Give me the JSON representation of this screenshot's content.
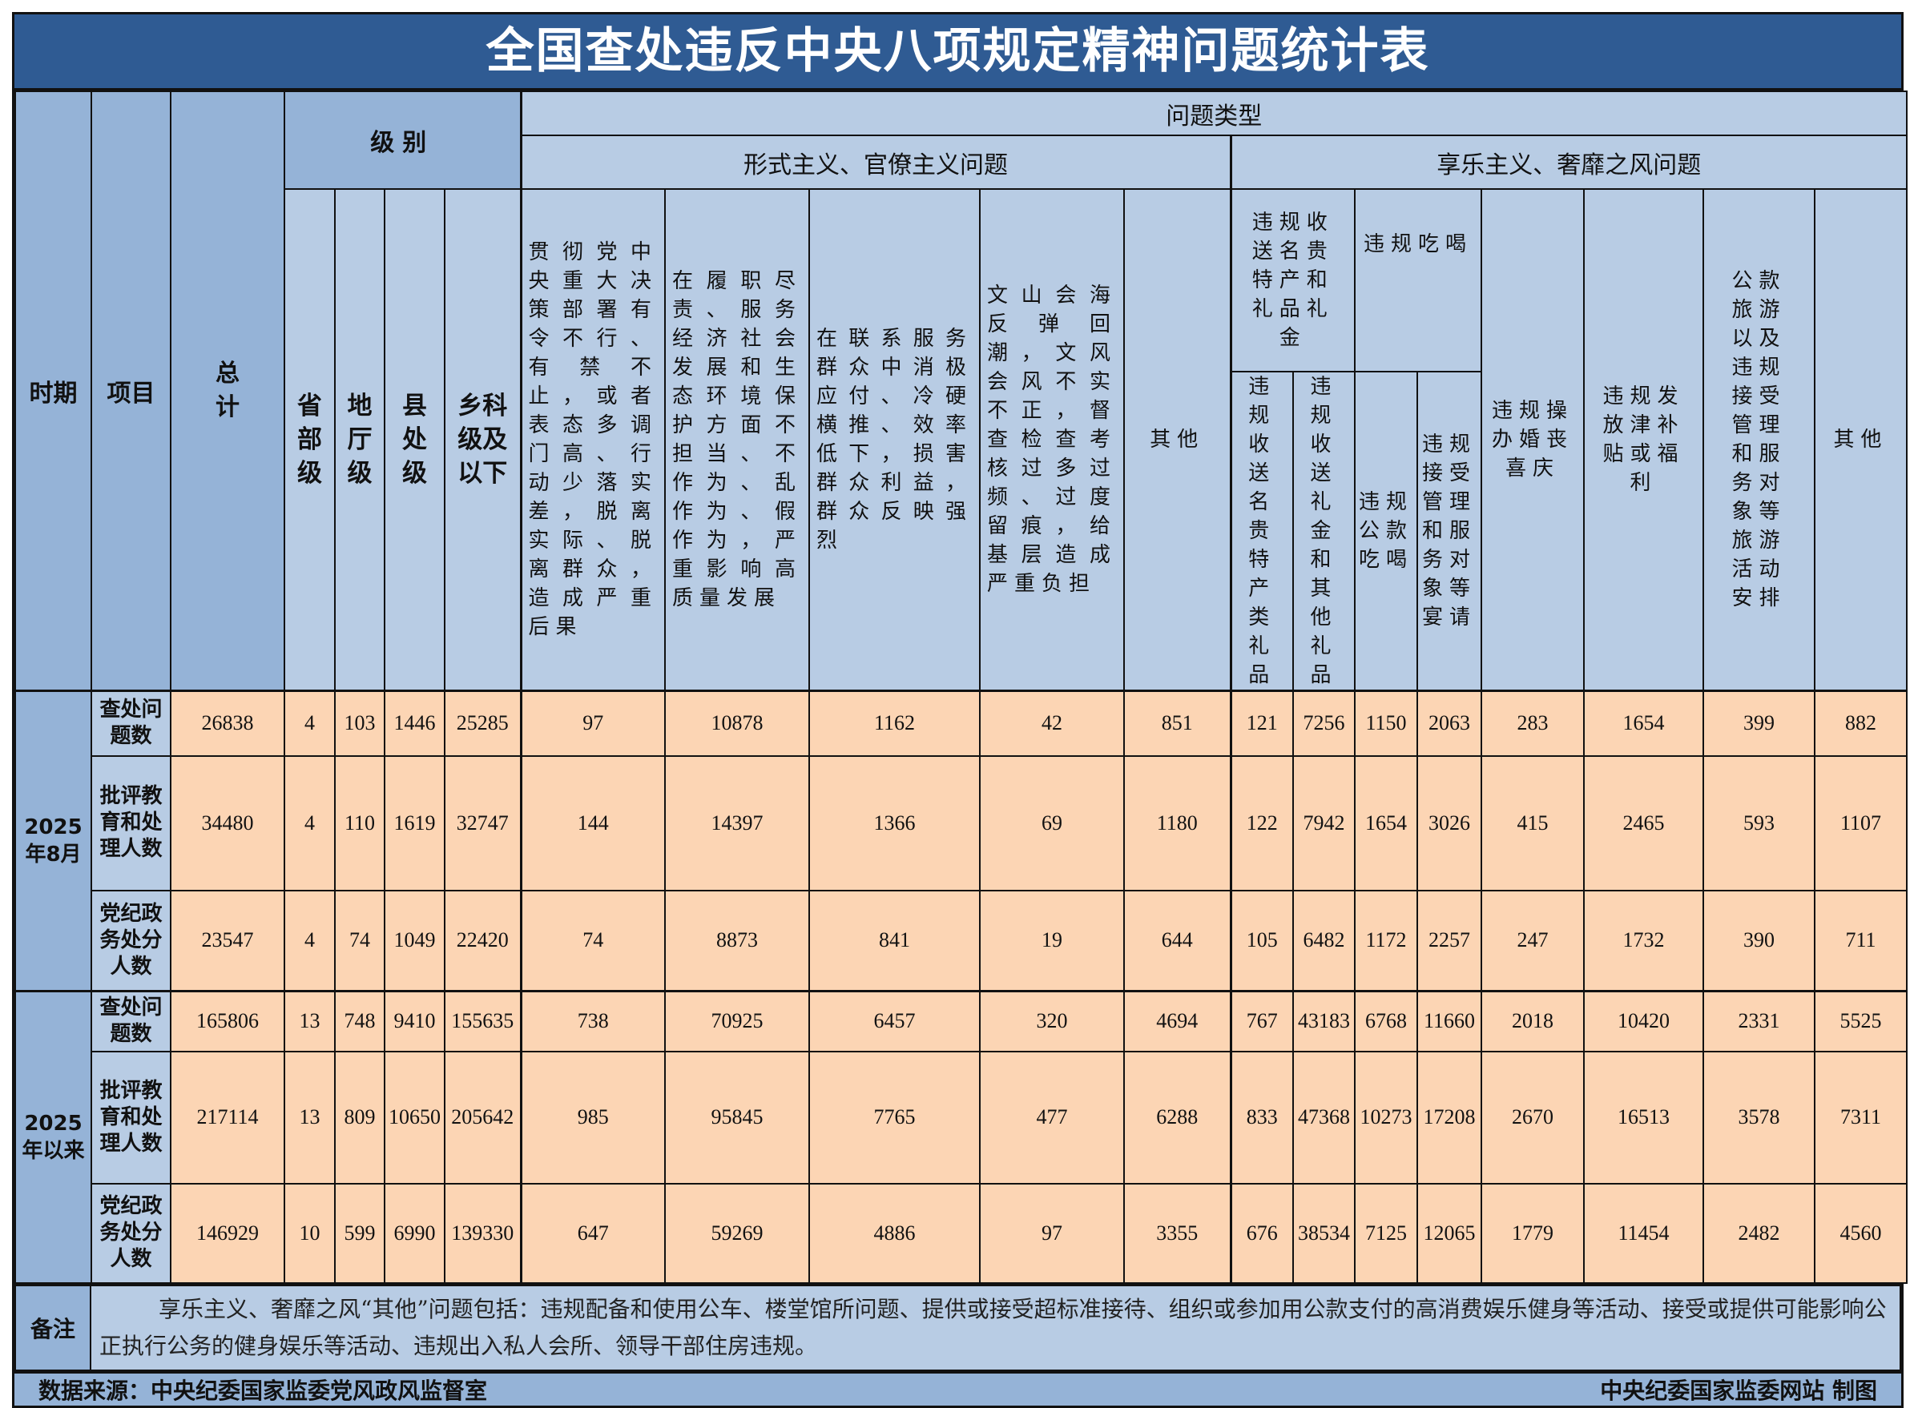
{
  "title": "全国查处违反中央八项规定精神问题统计表",
  "colors": {
    "title_bg": "#2f5b93",
    "header_bg": "#b8cce4",
    "side_bg": "#95b3d7",
    "data_bg": "#fcd5b4"
  },
  "header": {
    "period": "时期",
    "item": "项目",
    "total": "总计",
    "level": "级别",
    "levels": [
      "省部级",
      "地厅级",
      "县处级",
      "乡科级及以下"
    ],
    "problem_type": "问题类型",
    "formalism": {
      "label": "形式主义、官僚主义问题",
      "columns": [
        "贯彻党中央重大决策部署有令不行、有禁不止，或者表态多调门高、行动少落实差，脱离实际、脱离群众，造成严重后果",
        "在履职尽责、服务经济社会发展和生态环境保护方面不担当、不作为、乱作为、假作为，严重影响高质量发展",
        "在联系服务群众中消极应付、冷硬横推、效率低下，损害群众利益，群众反映强烈",
        "文山会海反弹回潮，文风会风不实不正，督查检查考核过多过频、过度留痕，给基层造成严重负担",
        "其他"
      ]
    },
    "hedonism": {
      "label": "享乐主义、奢靡之风问题",
      "gifts": {
        "label": "违规收送名贵特产和礼品礼金",
        "sub": [
          "违规收送名贵特产类礼品",
          "违规收送礼金和其他礼品"
        ]
      },
      "dining": {
        "label": "违规吃喝",
        "sub": [
          "违规公款吃喝",
          "违规接受管理和服务对象等宴请"
        ]
      },
      "columns": [
        "违规操办婚丧喜庆",
        "违规发放津补贴或福利",
        "公款旅游以及违规接受管理和服务对象等旅游活动安排",
        "其他"
      ]
    }
  },
  "periods": [
    {
      "label": "2025年8月",
      "rows": [
        {
          "item": "查处问题数",
          "values": [
            26838,
            4,
            103,
            1446,
            25285,
            97,
            10878,
            1162,
            42,
            851,
            121,
            7256,
            1150,
            2063,
            283,
            1654,
            399,
            882
          ]
        },
        {
          "item": "批评教育和处理人数",
          "values": [
            34480,
            4,
            110,
            1619,
            32747,
            144,
            14397,
            1366,
            69,
            1180,
            122,
            7942,
            1654,
            3026,
            415,
            2465,
            593,
            1107
          ]
        },
        {
          "item": "党纪政务处分人数",
          "values": [
            23547,
            4,
            74,
            1049,
            22420,
            74,
            8873,
            841,
            19,
            644,
            105,
            6482,
            1172,
            2257,
            247,
            1732,
            390,
            711
          ]
        }
      ]
    },
    {
      "label": "2025年以来",
      "rows": [
        {
          "item": "查处问题数",
          "values": [
            165806,
            13,
            748,
            9410,
            155635,
            738,
            70925,
            6457,
            320,
            4694,
            767,
            43183,
            6768,
            11660,
            2018,
            10420,
            2331,
            5525
          ]
        },
        {
          "item": "批评教育和处理人数",
          "values": [
            217114,
            13,
            809,
            10650,
            205642,
            985,
            95845,
            7765,
            477,
            6288,
            833,
            47368,
            10273,
            17208,
            2670,
            16513,
            3578,
            7311
          ]
        },
        {
          "item": "党纪政务处分人数",
          "values": [
            146929,
            10,
            599,
            6990,
            139330,
            647,
            59269,
            4886,
            97,
            3355,
            676,
            38534,
            7125,
            12065,
            1779,
            11454,
            2482,
            4560
          ]
        }
      ]
    }
  ],
  "note": {
    "label": "备注",
    "text": "享乐主义、奢靡之风“其他”问题包括：违规配备和使用公车、楼堂馆所问题、提供或接受超标准接待、组织或参加用公款支付的高消费娱乐健身等活动、接受或提供可能影响公正执行公务的健身娱乐等活动、违规出入私人会所、领导干部住房违规。"
  },
  "footer": {
    "source": "数据来源：中央纪委国家监委党风政风监督室",
    "credit": "中央纪委国家监委网站 制图"
  }
}
